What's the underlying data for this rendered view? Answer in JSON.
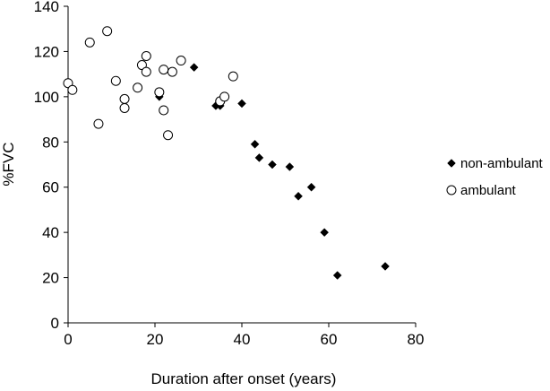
{
  "chart_data": {
    "type": "scatter",
    "title": "",
    "xlabel": "Duration after onset (years)",
    "ylabel": "%FVC",
    "xlim": [
      0,
      80
    ],
    "ylim": [
      0,
      140
    ],
    "xticks": [
      0,
      20,
      40,
      60,
      80
    ],
    "yticks": [
      0,
      20,
      40,
      60,
      80,
      100,
      120,
      140
    ],
    "grid": false,
    "legend_position": "right",
    "series": [
      {
        "name": "non-ambulant",
        "marker": "diamond-filled",
        "color": "#000000",
        "points": [
          {
            "x": 21,
            "y": 100
          },
          {
            "x": 29,
            "y": 113
          },
          {
            "x": 34,
            "y": 96
          },
          {
            "x": 35,
            "y": 96
          },
          {
            "x": 40,
            "y": 97
          },
          {
            "x": 43,
            "y": 79
          },
          {
            "x": 44,
            "y": 73
          },
          {
            "x": 47,
            "y": 70
          },
          {
            "x": 51,
            "y": 69
          },
          {
            "x": 53,
            "y": 56
          },
          {
            "x": 56,
            "y": 60
          },
          {
            "x": 59,
            "y": 40
          },
          {
            "x": 62,
            "y": 21
          },
          {
            "x": 73,
            "y": 25
          }
        ]
      },
      {
        "name": "ambulant",
        "marker": "circle-open",
        "color": "#000000",
        "points": [
          {
            "x": 0,
            "y": 106
          },
          {
            "x": 1,
            "y": 103
          },
          {
            "x": 5,
            "y": 124
          },
          {
            "x": 7,
            "y": 88
          },
          {
            "x": 9,
            "y": 129
          },
          {
            "x": 11,
            "y": 107
          },
          {
            "x": 13,
            "y": 99
          },
          {
            "x": 13,
            "y": 95
          },
          {
            "x": 16,
            "y": 104
          },
          {
            "x": 17,
            "y": 114
          },
          {
            "x": 18,
            "y": 118
          },
          {
            "x": 18,
            "y": 111
          },
          {
            "x": 21,
            "y": 102
          },
          {
            "x": 22,
            "y": 112
          },
          {
            "x": 22,
            "y": 94
          },
          {
            "x": 23,
            "y": 83
          },
          {
            "x": 24,
            "y": 111
          },
          {
            "x": 26,
            "y": 116
          },
          {
            "x": 35,
            "y": 98
          },
          {
            "x": 36,
            "y": 100
          },
          {
            "x": 38,
            "y": 109
          }
        ]
      }
    ]
  }
}
